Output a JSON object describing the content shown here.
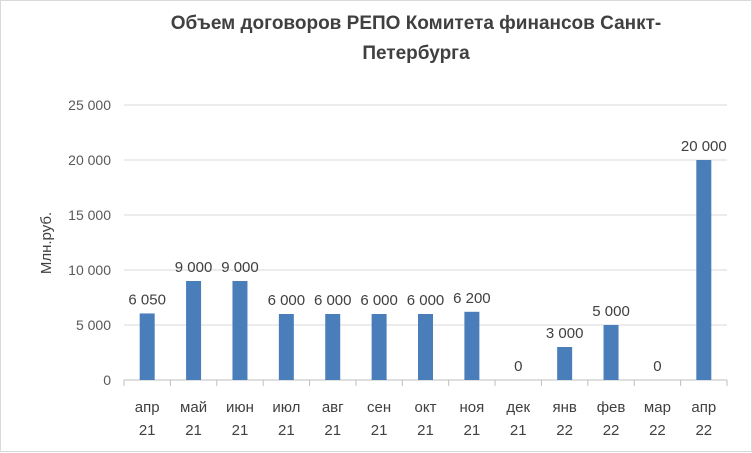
{
  "chart_data": {
    "type": "bar",
    "title_line1": "Объем договоров  РЕПО Комитета финансов Санкт-",
    "title_line2": "Петербурга",
    "ylabel": "Млн.руб.",
    "xlabel": "",
    "ylim": [
      0,
      25000
    ],
    "yticks": [
      0,
      5000,
      10000,
      15000,
      20000,
      25000
    ],
    "ytick_labels": [
      "0",
      "5 000",
      "10 000",
      "15 000",
      "20 000",
      "25 000"
    ],
    "grid": true,
    "categories": [
      [
        "апр",
        "21"
      ],
      [
        "май",
        "21"
      ],
      [
        "июн",
        "21"
      ],
      [
        "июл",
        "21"
      ],
      [
        "авг",
        "21"
      ],
      [
        "сен",
        "21"
      ],
      [
        "окт",
        "21"
      ],
      [
        "ноя",
        "21"
      ],
      [
        "дек",
        "21"
      ],
      [
        "янв",
        "22"
      ],
      [
        "фев",
        "22"
      ],
      [
        "мар",
        "22"
      ],
      [
        "апр",
        "22"
      ]
    ],
    "values": [
      6050,
      9000,
      9000,
      6000,
      6000,
      6000,
      6000,
      6200,
      0,
      3000,
      5000,
      0,
      20000
    ],
    "data_labels": [
      "6 050",
      "9 000",
      "9 000",
      "6 000",
      "6 000",
      "6 000",
      "6 000",
      "6 200",
      "0",
      "3 000",
      "5 000",
      "0",
      "20 000"
    ],
    "bar_color": "#4a7ebb"
  }
}
